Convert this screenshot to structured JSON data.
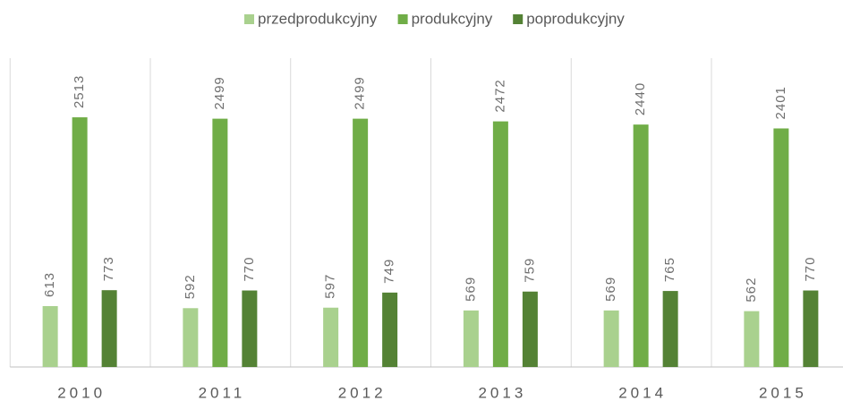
{
  "chart_data": {
    "type": "bar",
    "categories": [
      "2010",
      "2011",
      "2012",
      "2013",
      "2014",
      "2015"
    ],
    "series": [
      {
        "name": "przedprodukcyjny",
        "color": "#a9d18e",
        "values": [
          613,
          592,
          597,
          569,
          569,
          562
        ]
      },
      {
        "name": "produkcyjny",
        "color": "#70ad47",
        "values": [
          2513,
          2499,
          2499,
          2472,
          2440,
          2401
        ]
      },
      {
        "name": "poprodukcyjny",
        "color": "#548235",
        "values": [
          773,
          770,
          749,
          759,
          765,
          770
        ]
      }
    ],
    "ylim": [
      0,
      3000
    ],
    "grid": true,
    "legend": "top"
  }
}
